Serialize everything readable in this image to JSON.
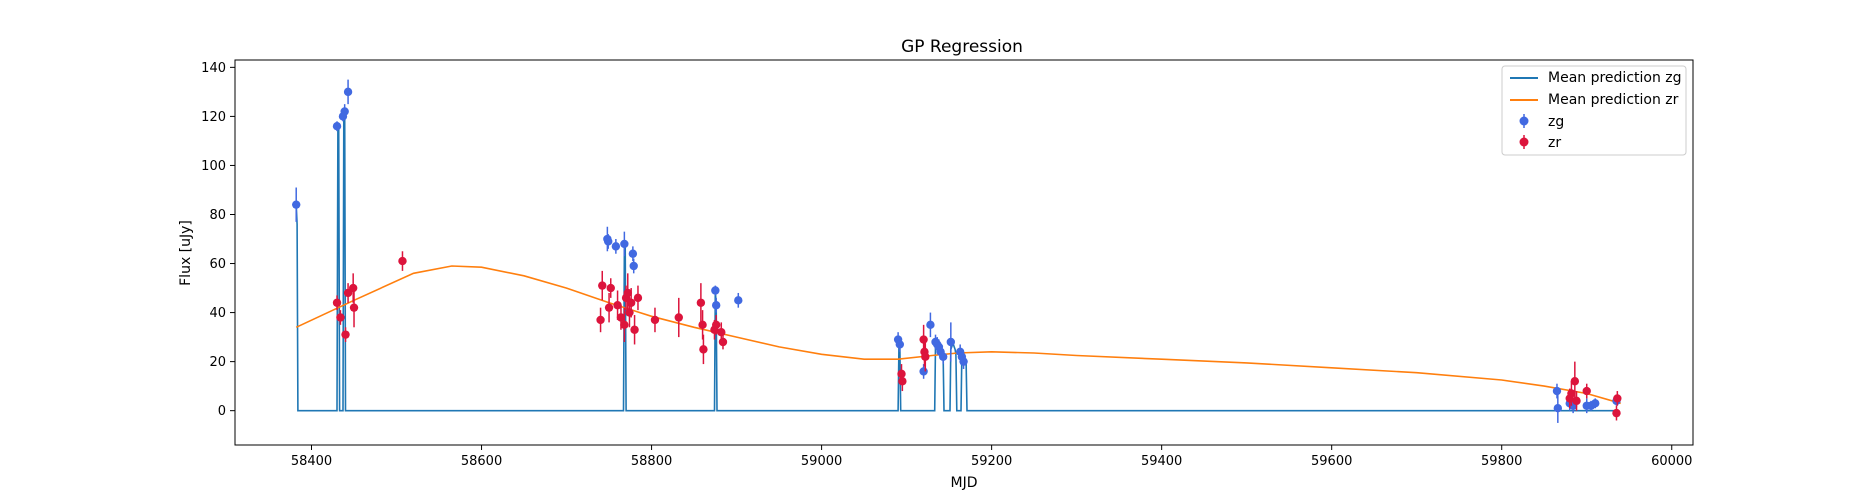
{
  "chart_data": {
    "type": "scatter",
    "title": "GP Regression",
    "xlabel": "MJD",
    "ylabel": "Flux [uJy]",
    "xlim": [
      58310,
      60025
    ],
    "ylim": [
      -14,
      143
    ],
    "xticks": [
      58400,
      58600,
      58800,
      59000,
      59200,
      59400,
      59600,
      59800,
      60000
    ],
    "yticks": [
      0,
      20,
      40,
      60,
      80,
      100,
      120,
      140
    ],
    "grid": false,
    "legend_position": "top-right",
    "legend": [
      "Mean prediction zg",
      "Mean prediction zr",
      "zg",
      "zr"
    ],
    "series": [
      {
        "name": "Mean prediction zg",
        "kind": "line",
        "color": "#1f77b4",
        "x": [
          58382,
          58383,
          58384,
          58385,
          58430,
          58431,
          58432,
          58433,
          58434,
          58435,
          58436,
          58437,
          58438,
          58439,
          58440,
          58441,
          58442,
          58443,
          58767,
          58768,
          58769,
          58770,
          58874,
          58875,
          58876,
          58877,
          59090,
          59091,
          59092,
          59093,
          59133,
          59134,
          59135,
          59136,
          59137,
          59138,
          59139,
          59140,
          59141,
          59142,
          59143,
          59144,
          59145,
          59146,
          59147,
          59148,
          59149,
          59150,
          59151,
          59152,
          59153,
          59154,
          59155,
          59156,
          59157,
          59158,
          59159,
          59160,
          59161,
          59162,
          59163,
          59164,
          59165,
          59166,
          59167,
          59168,
          59169,
          59170,
          59171,
          59172,
          59865,
          59935
        ],
        "y": [
          84,
          76,
          0,
          0,
          0,
          116,
          116,
          0,
          0,
          0,
          0,
          0,
          120,
          121,
          0,
          0,
          0,
          0,
          0,
          68,
          68,
          0,
          0,
          49,
          43,
          0,
          0,
          28,
          28,
          0,
          0,
          27,
          27,
          27,
          26,
          26,
          25,
          24,
          23,
          22,
          21,
          0,
          0,
          0,
          0,
          0,
          0,
          0,
          0,
          25,
          26,
          27,
          27,
          26,
          25,
          23,
          0,
          0,
          0,
          0,
          0,
          0,
          24,
          23,
          22,
          21,
          21,
          20,
          0,
          0,
          0,
          0
        ]
      },
      {
        "name": "Mean prediction zr",
        "kind": "line",
        "color": "#ff7f0e",
        "x": [
          58382,
          58450,
          58520,
          58565,
          58600,
          58650,
          58700,
          58750,
          58800,
          58850,
          58900,
          58950,
          59000,
          59050,
          59090,
          59130,
          59160,
          59200,
          59250,
          59300,
          59400,
          59500,
          59600,
          59700,
          59800,
          59850,
          59900,
          59940
        ],
        "y": [
          34,
          45,
          56,
          59,
          58.5,
          55,
          50,
          44,
          38.5,
          34,
          30,
          26,
          23,
          21,
          21,
          22.5,
          23.5,
          24,
          23.5,
          22.5,
          21,
          19.5,
          17.5,
          15.5,
          12.5,
          10,
          7,
          3
        ]
      },
      {
        "name": "zg",
        "kind": "errorbar",
        "color": "#4169e1",
        "points": [
          {
            "x": 58382,
            "y": 84,
            "err": 7
          },
          {
            "x": 58430,
            "y": 116,
            "err": 2
          },
          {
            "x": 58437,
            "y": 120,
            "err": 2
          },
          {
            "x": 58439,
            "y": 122,
            "err": 3
          },
          {
            "x": 58443,
            "y": 130,
            "err": 5
          },
          {
            "x": 58748,
            "y": 70,
            "err": 5
          },
          {
            "x": 58749,
            "y": 69,
            "err": 3
          },
          {
            "x": 58758,
            "y": 67,
            "err": 3
          },
          {
            "x": 58768,
            "y": 68,
            "err": 5
          },
          {
            "x": 58778,
            "y": 64,
            "err": 3
          },
          {
            "x": 58779,
            "y": 59,
            "err": 3
          },
          {
            "x": 58875,
            "y": 49,
            "err": 2
          },
          {
            "x": 58876,
            "y": 43,
            "err": 3
          },
          {
            "x": 58902,
            "y": 45,
            "err": 3
          },
          {
            "x": 59090,
            "y": 29,
            "err": 3
          },
          {
            "x": 59092,
            "y": 27,
            "err": 3
          },
          {
            "x": 59120,
            "y": 16,
            "err": 3
          },
          {
            "x": 59128,
            "y": 35,
            "err": 5
          },
          {
            "x": 59134,
            "y": 28,
            "err": 3
          },
          {
            "x": 59136,
            "y": 27,
            "err": 3
          },
          {
            "x": 59138,
            "y": 26,
            "err": 3
          },
          {
            "x": 59140,
            "y": 24,
            "err": 3
          },
          {
            "x": 59143,
            "y": 22,
            "err": 3
          },
          {
            "x": 59152,
            "y": 28,
            "err": 8
          },
          {
            "x": 59163,
            "y": 24,
            "err": 3
          },
          {
            "x": 59165,
            "y": 22,
            "err": 3
          },
          {
            "x": 59167,
            "y": 20,
            "err": 3
          },
          {
            "x": 59865,
            "y": 8,
            "err": 3
          },
          {
            "x": 59866,
            "y": 1,
            "err": 6
          },
          {
            "x": 59880,
            "y": 3,
            "err": 3
          },
          {
            "x": 59884,
            "y": 2,
            "err": 3
          },
          {
            "x": 59900,
            "y": 2,
            "err": 3
          },
          {
            "x": 59905,
            "y": 2,
            "err": 2
          },
          {
            "x": 59910,
            "y": 3,
            "err": 2
          },
          {
            "x": 59935,
            "y": 4,
            "err": 2
          }
        ]
      },
      {
        "name": "zr",
        "kind": "errorbar",
        "color": "#dc143c",
        "points": [
          {
            "x": 58430,
            "y": 44,
            "err": 3
          },
          {
            "x": 58434,
            "y": 38,
            "err": 3
          },
          {
            "x": 58440,
            "y": 31,
            "err": 3
          },
          {
            "x": 58443,
            "y": 48,
            "err": 4
          },
          {
            "x": 58449,
            "y": 50,
            "err": 6
          },
          {
            "x": 58450,
            "y": 42,
            "err": 8
          },
          {
            "x": 58507,
            "y": 61,
            "err": 4
          },
          {
            "x": 58740,
            "y": 37,
            "err": 5
          },
          {
            "x": 58742,
            "y": 51,
            "err": 6
          },
          {
            "x": 58750,
            "y": 42,
            "err": 6
          },
          {
            "x": 58752,
            "y": 50,
            "err": 4
          },
          {
            "x": 58760,
            "y": 43,
            "err": 6
          },
          {
            "x": 58764,
            "y": 38,
            "err": 5
          },
          {
            "x": 58768,
            "y": 35,
            "err": 7
          },
          {
            "x": 58770,
            "y": 46,
            "err": 5
          },
          {
            "x": 58772,
            "y": 48,
            "err": 8
          },
          {
            "x": 58774,
            "y": 40,
            "err": 6
          },
          {
            "x": 58776,
            "y": 44,
            "err": 6
          },
          {
            "x": 58780,
            "y": 33,
            "err": 6
          },
          {
            "x": 58784,
            "y": 46,
            "err": 5
          },
          {
            "x": 58804,
            "y": 37,
            "err": 5
          },
          {
            "x": 58832,
            "y": 38,
            "err": 8
          },
          {
            "x": 58858,
            "y": 44,
            "err": 8
          },
          {
            "x": 58860,
            "y": 35,
            "err": 6
          },
          {
            "x": 58861,
            "y": 25,
            "err": 6
          },
          {
            "x": 58874,
            "y": 33,
            "err": 4
          },
          {
            "x": 58876,
            "y": 35,
            "err": 4
          },
          {
            "x": 58882,
            "y": 32,
            "err": 4
          },
          {
            "x": 58884,
            "y": 28,
            "err": 3
          },
          {
            "x": 59094,
            "y": 15,
            "err": 4
          },
          {
            "x": 59095,
            "y": 12,
            "err": 4
          },
          {
            "x": 59120,
            "y": 29,
            "err": 6
          },
          {
            "x": 59121,
            "y": 24,
            "err": 6
          },
          {
            "x": 59122,
            "y": 22,
            "err": 6
          },
          {
            "x": 59880,
            "y": 5,
            "err": 4
          },
          {
            "x": 59882,
            "y": 7,
            "err": 5
          },
          {
            "x": 59886,
            "y": 12,
            "err": 8
          },
          {
            "x": 59888,
            "y": 4,
            "err": 4
          },
          {
            "x": 59900,
            "y": 8,
            "err": 3
          },
          {
            "x": 59935,
            "y": -1,
            "err": 3
          },
          {
            "x": 59936,
            "y": 5,
            "err": 3
          }
        ]
      }
    ]
  }
}
